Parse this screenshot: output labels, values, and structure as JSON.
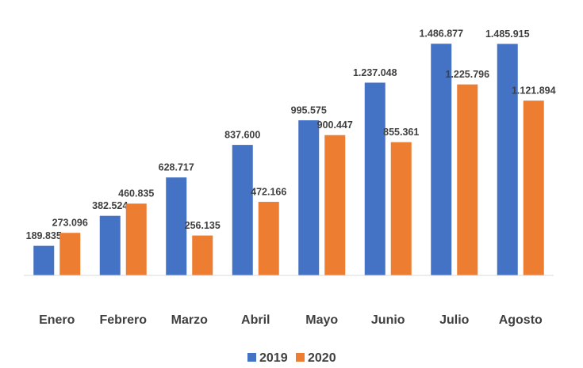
{
  "chart_data": {
    "type": "bar",
    "categories": [
      "Enero",
      "Febrero",
      "Marzo",
      "Abril",
      "Mayo",
      "Junio",
      "Julio",
      "Agosto"
    ],
    "series": [
      {
        "name": "2019",
        "color": "#4472c4",
        "values": [
          189835,
          382524,
          628717,
          837600,
          995575,
          1237048,
          1486877,
          1485915
        ],
        "value_labels": [
          "189.835",
          "382.524",
          "628.717",
          "837.600",
          "995.575",
          "1.237.048",
          "1.486.877",
          "1.485.915"
        ]
      },
      {
        "name": "2020",
        "color": "#ed7d31",
        "values": [
          273096,
          460835,
          256135,
          472166,
          900447,
          855361,
          1225796,
          1121894
        ],
        "value_labels": [
          "273.096",
          "460.835",
          "256.135",
          "472.166",
          "900.447",
          "855.361",
          "1.225.796",
          "1.121.894"
        ]
      }
    ],
    "ylim": [
      0,
      1600000
    ],
    "legend": "bottom"
  }
}
